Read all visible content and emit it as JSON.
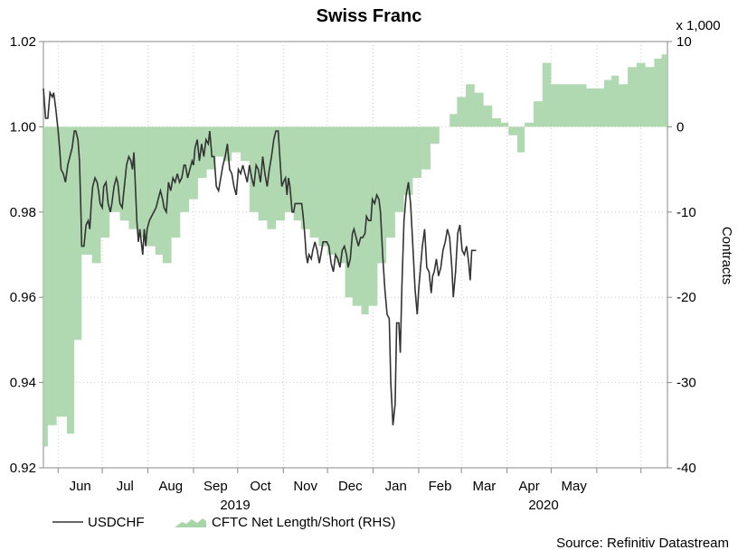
{
  "chart_data": {
    "type": "line",
    "title": "Swiss Franc",
    "left_axis": {
      "label": "",
      "ylim": [
        0.92,
        1.02
      ],
      "ticks": [
        "0.92",
        "0.94",
        "0.96",
        "0.98",
        "1.00",
        "1.02"
      ]
    },
    "right_axis": {
      "label": "Contracts",
      "multiplier": "x 1,000",
      "ylim": [
        -40,
        10
      ],
      "ticks": [
        "-40",
        "-30",
        "-20",
        "-10",
        "0",
        "10"
      ]
    },
    "months": [
      "Jun",
      "Jul",
      "Aug",
      "Sep",
      "Oct",
      "Nov",
      "Dec",
      "Jan",
      "Feb",
      "Mar",
      "Apr",
      "May"
    ],
    "years": [
      "2019",
      "2020"
    ],
    "legend_position": "bottom-left",
    "source": "Source: Refinitiv Datastream",
    "series": [
      {
        "name": "USDCHF",
        "type": "line",
        "axis": "left",
        "color": "#333333",
        "points": [
          [
            0,
            1.009
          ],
          [
            1.5,
            1.002
          ],
          [
            3,
            1.002
          ],
          [
            4.5,
            1.008
          ],
          [
            6,
            1.007
          ],
          [
            7,
            1.008
          ],
          [
            8.5,
            1.004
          ],
          [
            10,
            0.999
          ],
          [
            11,
            0.995
          ],
          [
            12,
            0.99
          ],
          [
            13.5,
            0.989
          ],
          [
            15,
            0.987
          ],
          [
            16.5,
            0.991
          ],
          [
            18,
            0.993
          ],
          [
            19.5,
            0.995
          ],
          [
            21,
            0.999
          ],
          [
            22,
            0.999
          ],
          [
            23.5,
            0.997
          ],
          [
            24.5,
            0.992
          ],
          [
            25.5,
            0.98
          ],
          [
            26,
            0.972
          ],
          [
            27.5,
            0.972
          ],
          [
            29,
            0.977
          ],
          [
            30.5,
            0.978
          ],
          [
            31.5,
            0.976
          ],
          [
            32.5,
            0.982
          ],
          [
            33.5,
            0.986
          ],
          [
            35,
            0.988
          ],
          [
            36.5,
            0.987
          ],
          [
            37.5,
            0.985
          ],
          [
            38.5,
            0.982
          ],
          [
            40,
            0.981
          ],
          [
            41,
            0.986
          ],
          [
            42.5,
            0.987
          ],
          [
            44,
            0.982
          ],
          [
            45.5,
            0.98
          ],
          [
            46.5,
            0.982
          ],
          [
            48,
            0.986
          ],
          [
            49.5,
            0.988
          ],
          [
            50.5,
            0.987
          ],
          [
            52,
            0.982
          ],
          [
            53.5,
            0.981
          ],
          [
            55,
            0.986
          ],
          [
            56.5,
            0.991
          ],
          [
            58,
            0.993
          ],
          [
            59.5,
            0.992
          ],
          [
            60.5,
            0.99
          ],
          [
            61.5,
            0.994
          ],
          [
            62.5,
            0.986
          ],
          [
            63.5,
            0.978
          ],
          [
            64.5,
            0.973
          ],
          [
            65.5,
            0.976
          ],
          [
            66.5,
            0.973
          ],
          [
            67.5,
            0.97
          ],
          [
            68.5,
            0.976
          ],
          [
            69.5,
            0.972
          ],
          [
            70.5,
            0.976
          ],
          [
            72,
            0.978
          ],
          [
            73.5,
            0.979
          ],
          [
            75,
            0.98
          ],
          [
            76.5,
            0.981
          ],
          [
            78,
            0.983
          ],
          [
            79.5,
            0.985
          ],
          [
            81,
            0.983
          ],
          [
            82,
            0.981
          ],
          [
            83.5,
            0.98
          ],
          [
            85,
            0.987
          ],
          [
            86.5,
            0.985
          ],
          [
            88,
            0.988
          ],
          [
            89.5,
            0.987
          ],
          [
            91,
            0.989
          ],
          [
            92.5,
            0.987
          ],
          [
            94,
            0.988
          ],
          [
            95.5,
            0.991
          ],
          [
            96.5,
            0.991
          ],
          [
            98,
            0.988
          ],
          [
            99.5,
            0.99
          ],
          [
            101,
            0.992
          ],
          [
            102,
            0.991
          ],
          [
            103,
            0.995
          ],
          [
            104.5,
            0.997
          ],
          [
            106,
            0.992
          ],
          [
            107.5,
            0.996
          ],
          [
            109,
            0.993
          ],
          [
            110.5,
            0.997
          ],
          [
            112,
            0.996
          ],
          [
            113,
            0.999
          ],
          [
            114.5,
            0.993
          ],
          [
            116,
            0.993
          ],
          [
            117.5,
            0.986
          ],
          [
            119,
            0.985
          ],
          [
            120.5,
            0.988
          ],
          [
            122,
            0.991
          ],
          [
            123.5,
            0.993
          ],
          [
            125,
            0.996
          ],
          [
            126.5,
            0.99
          ],
          [
            128,
            0.989
          ],
          [
            129.5,
            0.986
          ],
          [
            131,
            0.984
          ],
          [
            132.5,
            0.99
          ],
          [
            134,
            0.989
          ],
          [
            135.5,
            0.991
          ],
          [
            137,
            0.989
          ],
          [
            138.5,
            0.987
          ],
          [
            140,
            0.991
          ],
          [
            141.5,
            0.988
          ],
          [
            143,
            0.986
          ],
          [
            144.5,
            0.991
          ],
          [
            146,
            0.99
          ],
          [
            147.5,
            0.987
          ],
          [
            149,
            0.993
          ],
          [
            150.5,
            0.989
          ],
          [
            152,
            0.986
          ],
          [
            153.5,
            0.99
          ],
          [
            155,
            0.993
          ],
          [
            156.5,
            0.997
          ],
          [
            158,
            0.999
          ],
          [
            159.5,
            0.999
          ],
          [
            161,
            0.991
          ],
          [
            162,
            0.986
          ],
          [
            163,
            0.987
          ],
          [
            164.5,
            0.988
          ],
          [
            165.5,
            0.984
          ],
          [
            166.5,
            0.988
          ],
          [
            167.5,
            0.986
          ],
          [
            169,
            0.98
          ],
          [
            170,
            0.98
          ],
          [
            171,
            0.982
          ],
          [
            172.5,
            0.982
          ],
          [
            174,
            0.982
          ],
          [
            175.5,
            0.982
          ],
          [
            176.5,
            0.979
          ],
          [
            177.5,
            0.975
          ],
          [
            178.5,
            0.97
          ],
          [
            179.5,
            0.968
          ],
          [
            180.5,
            0.97
          ],
          [
            182,
            0.969
          ],
          [
            183,
            0.971
          ],
          [
            184.5,
            0.973
          ],
          [
            186,
            0.971
          ],
          [
            187.5,
            0.968
          ],
          [
            189,
            0.971
          ],
          [
            190,
            0.973
          ],
          [
            191,
            0.973
          ],
          [
            192.5,
            0.973
          ],
          [
            194,
            0.972
          ],
          [
            195.5,
            0.968
          ],
          [
            197,
            0.966
          ],
          [
            198.5,
            0.97
          ],
          [
            200,
            0.969
          ],
          [
            201.5,
            0.967
          ],
          [
            203,
            0.971
          ],
          [
            204.5,
            0.972
          ],
          [
            206,
            0.97
          ],
          [
            207,
            0.967
          ],
          [
            208.5,
            0.969
          ],
          [
            210,
            0.975
          ],
          [
            211,
            0.976
          ],
          [
            212.5,
            0.974
          ],
          [
            214,
            0.972
          ],
          [
            215.5,
            0.974
          ],
          [
            217,
            0.974
          ],
          [
            218.5,
            0.975
          ],
          [
            219.5,
            0.979
          ],
          [
            221,
            0.978
          ],
          [
            222.5,
            0.978
          ],
          [
            223.5,
            0.983
          ],
          [
            225,
            0.982
          ],
          [
            226.5,
            0.984
          ],
          [
            228,
            0.983
          ],
          [
            229,
            0.98
          ],
          [
            230.5,
            0.97
          ],
          [
            232,
            0.962
          ],
          [
            233.5,
            0.956
          ],
          [
            235,
            0.955
          ],
          [
            236,
            0.94
          ],
          [
            237.5,
            0.93
          ],
          [
            239,
            0.935
          ],
          [
            240,
            0.954
          ],
          [
            241.5,
            0.954
          ],
          [
            242.5,
            0.947
          ],
          [
            243.5,
            0.962
          ],
          [
            245,
            0.978
          ],
          [
            246.5,
            0.984
          ],
          [
            248,
            0.987
          ],
          [
            249.5,
            0.982
          ],
          [
            251,
            0.972
          ],
          [
            252.5,
            0.962
          ],
          [
            254,
            0.956
          ],
          [
            255,
            0.962
          ],
          [
            256,
            0.966
          ],
          [
            257.5,
            0.972
          ],
          [
            259,
            0.976
          ],
          [
            260.5,
            0.967
          ],
          [
            262,
            0.966
          ],
          [
            263.5,
            0.961
          ],
          [
            264.5,
            0.965
          ],
          [
            265.5,
            0.966
          ],
          [
            267,
            0.969
          ],
          [
            268.5,
            0.965
          ],
          [
            270,
            0.967
          ],
          [
            271.5,
            0.971
          ],
          [
            273,
            0.973
          ],
          [
            274.5,
            0.976
          ],
          [
            276,
            0.974
          ],
          [
            277.5,
            0.967
          ],
          [
            278.5,
            0.96
          ],
          [
            280,
            0.966
          ],
          [
            281.5,
            0.975
          ],
          [
            283,
            0.977
          ],
          [
            284.5,
            0.971
          ],
          [
            286,
            0.97
          ],
          [
            287.5,
            0.972
          ],
          [
            289,
            0.968
          ],
          [
            290,
            0.964
          ],
          [
            291,
            0.971
          ],
          [
            292.5,
            0.971
          ],
          [
            294,
            0.971
          ]
        ]
      },
      {
        "name": "CFTC Net Length/Short (RHS)",
        "type": "step-area",
        "axis": "right",
        "color": "#a8d5a8",
        "steps": [
          [
            0,
            -37.5
          ],
          [
            3,
            -35
          ],
          [
            9,
            -34
          ],
          [
            16,
            -36
          ],
          [
            21,
            -25
          ],
          [
            26,
            -15
          ],
          [
            33,
            -16
          ],
          [
            39,
            -13
          ],
          [
            45,
            -10
          ],
          [
            52,
            -11
          ],
          [
            58,
            -12
          ],
          [
            64,
            -13
          ],
          [
            70,
            -14
          ],
          [
            76,
            -15
          ],
          [
            81,
            -16
          ],
          [
            87,
            -13
          ],
          [
            93,
            -10
          ],
          [
            99,
            -8.5
          ],
          [
            105,
            -6
          ],
          [
            111,
            -5
          ],
          [
            117,
            -3.5
          ],
          [
            122,
            -4
          ],
          [
            128,
            -3
          ],
          [
            134,
            -4
          ],
          [
            140,
            -10
          ],
          [
            146,
            -11
          ],
          [
            152,
            -12
          ],
          [
            158,
            -11
          ],
          [
            164,
            -10
          ],
          [
            170,
            -11
          ],
          [
            175,
            -12
          ],
          [
            181,
            -13
          ],
          [
            187,
            -14
          ],
          [
            193,
            -15
          ],
          [
            199,
            -16
          ],
          [
            205,
            -20
          ],
          [
            210,
            -21
          ],
          [
            216,
            -22
          ],
          [
            221,
            -21
          ],
          [
            227,
            -16
          ],
          [
            233,
            -13
          ],
          [
            239,
            -10
          ],
          [
            245,
            -8
          ],
          [
            251,
            -6
          ],
          [
            257,
            -5
          ],
          [
            263,
            -2
          ],
          [
            269,
            0
          ],
          [
            276,
            1.5
          ],
          [
            281,
            3.5
          ],
          [
            287,
            5
          ],
          [
            293,
            4
          ],
          [
            299,
            2.5
          ],
          [
            305,
            1
          ],
          [
            311,
            0.5
          ],
          [
            316,
            -1
          ],
          [
            322,
            -3
          ],
          [
            327,
            0.5
          ],
          [
            333,
            3
          ],
          [
            339,
            7.5
          ],
          [
            345,
            5
          ],
          [
            351,
            5
          ],
          [
            357,
            5
          ],
          [
            363,
            5
          ],
          [
            369,
            4.5
          ],
          [
            375,
            4.5
          ],
          [
            381,
            5.5
          ],
          [
            386,
            6
          ],
          [
            391,
            5
          ],
          [
            397,
            7
          ],
          [
            403,
            7.5
          ],
          [
            409,
            7
          ],
          [
            415,
            8
          ],
          [
            420,
            8.5
          ]
        ]
      }
    ]
  }
}
